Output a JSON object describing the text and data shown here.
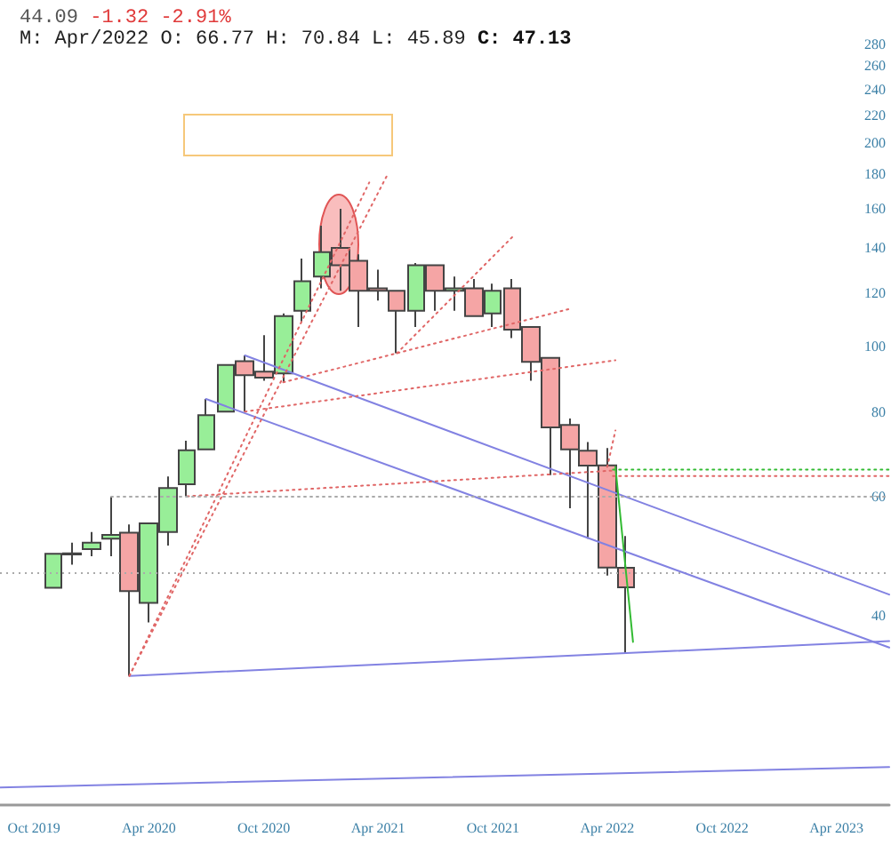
{
  "chart_data": {
    "type": "candlestick",
    "title": "44.09 -1.32 -2.91%",
    "subtitle": "M: Apr/2022 O: 66.77 H: 70.84 L: 45.89 C: 47.13",
    "series": [
      {
        "x": [
          "2019-11",
          "2019-12",
          "2020-01",
          "2020-02",
          "2020-03",
          "2020-04",
          "2020-05",
          "2020-06",
          "2020-07",
          "2020-08",
          "2020-09",
          "2020-10",
          "2020-11",
          "2020-12",
          "2021-01",
          "2021-02",
          "2021-03",
          "2021-04",
          "2021-05",
          "2021-06",
          "2021-07",
          "2021-08",
          "2021-09",
          "2021-10",
          "2021-11",
          "2021-12",
          "2022-01",
          "2022-02",
          "2022-03",
          "2022-04",
          "2022-05"
        ],
        "ohlc": [
          [
            44.0,
            49.4,
            44.0,
            49.4
          ],
          [
            49.3,
            51.3,
            47.6,
            49.5
          ],
          [
            50.2,
            53.2,
            49.0,
            51.3
          ],
          [
            52.0,
            60.0,
            49.0,
            52.7
          ],
          [
            53.1,
            54.6,
            32.6,
            43.5
          ],
          [
            41.8,
            54.8,
            39.1,
            54.8
          ],
          [
            53.2,
            64.3,
            50.8,
            61.8
          ],
          [
            62.6,
            72.6,
            60.1,
            70.3
          ],
          [
            70.5,
            83.7,
            70.5,
            79.2
          ],
          [
            80.2,
            94.0,
            80.2,
            94.0
          ],
          [
            95.2,
            97.1,
            80.2,
            90.8
          ],
          [
            91.9,
            104,
            89.1,
            90.0
          ],
          [
            91.3,
            112,
            88.6,
            111
          ],
          [
            113,
            135,
            109,
            125
          ],
          [
            127,
            151,
            122,
            138
          ],
          [
            140,
            160,
            121,
            132
          ],
          [
            134,
            137,
            107,
            121
          ],
          [
            122,
            130,
            117,
            121
          ],
          [
            121,
            121,
            97.8,
            113
          ],
          [
            113,
            133,
            107,
            132
          ],
          [
            132,
            132,
            113,
            121
          ],
          [
            121,
            127,
            113,
            122
          ],
          [
            122,
            126,
            111,
            111
          ],
          [
            112,
            124,
            107,
            121
          ],
          [
            122,
            126,
            103,
            106
          ],
          [
            107,
            107,
            89.1,
            95.0
          ],
          [
            96.3,
            96.6,
            64.6,
            76.0
          ],
          [
            76.6,
            78.3,
            57.7,
            70.5
          ],
          [
            70.2,
            72.3,
            52.0,
            66.7
          ],
          [
            66.77,
            70.84,
            45.89,
            47.13
          ],
          [
            47.1,
            52.5,
            35.2,
            44.09
          ]
        ],
        "colors": [
          "#98ee98",
          "#98ee98",
          "#98ee98",
          "#98ee98",
          "#f5a5a5",
          "#98ee98",
          "#98ee98",
          "#98ee98",
          "#98ee98",
          "#98ee98",
          "#f5a5a5",
          "#f5a5a5",
          "#98ee98",
          "#98ee98",
          "#98ee98",
          "#f5a5a5",
          "#f5a5a5",
          "#f5a5a5",
          "#f5a5a5",
          "#98ee98",
          "#f5a5a5",
          "#98ee98",
          "#f5a5a5",
          "#98ee98",
          "#f5a5a5",
          "#f5a5a5",
          "#f5a5a5",
          "#f5a5a5",
          "#f5a5a5",
          "#f5a5a5",
          "#f5a5a5"
        ]
      },
      {
        "type": "line",
        "x": [
          "2020-09",
          "2023-06-24"
        ],
        "values": [
          97.1,
          43.0
        ],
        "color": "#8282e2",
        "line_style": "solid"
      },
      {
        "type": "line",
        "x": [
          "2020-07",
          "2023-06-24"
        ],
        "values": [
          83.7,
          35.9
        ],
        "color": "#8282e2",
        "line_style": "solid"
      },
      {
        "type": "line",
        "x": [
          "2020-03",
          "2023-06-24"
        ],
        "values": [
          32.6,
          36.7
        ],
        "color": "#8282e2",
        "line_style": "solid"
      },
      {
        "type": "line",
        "x": [
          "2019-08-08",
          "2023-06-24"
        ],
        "values": [
          22.3,
          23.9
        ],
        "color": "#8282e2",
        "line_style": "solid"
      },
      {
        "type": "line",
        "x": [
          "2020-03",
          "2021-03-18"
        ],
        "values": [
          32.6,
          175
        ],
        "color": "#e06666",
        "line_style": "dotted"
      },
      {
        "type": "line",
        "x": [
          "2020-03",
          "2021-04-15"
        ],
        "values": [
          32.6,
          179
        ],
        "color": "#e06666",
        "line_style": "dotted"
      },
      {
        "type": "line",
        "x": [
          "2020-06",
          "2022-04-10"
        ],
        "values": [
          60.1,
          65.6
        ],
        "color": "#e06666",
        "line_style": "dotted"
      },
      {
        "type": "line",
        "x": [
          "2022-04-10",
          "2023-06-24"
        ],
        "values": [
          64.4,
          64.4
        ],
        "color": "#e06666",
        "line_style": "dotted"
      },
      {
        "type": "line",
        "x": [
          "2020-09",
          "2022-04-14"
        ],
        "values": [
          80.2,
          95.5
        ],
        "color": "#e06666",
        "line_style": "dotted"
      },
      {
        "type": "line",
        "x": [
          "2020-11",
          "2022-02-04"
        ],
        "values": [
          88.6,
          114
        ],
        "color": "#e06666",
        "line_style": "dotted"
      },
      {
        "type": "line",
        "x": [
          "2021-05",
          "2021-11-03"
        ],
        "values": [
          97.8,
          146
        ],
        "color": "#e06666",
        "line_style": "dotted"
      },
      {
        "type": "line",
        "x": [
          "2022-04",
          "2022-04-14"
        ],
        "values": [
          66.4,
          75.2
        ],
        "color": "#e06666",
        "line_style": "dotted"
      },
      {
        "type": "line",
        "x": [
          "2022-04-10",
          "2023-06-24"
        ],
        "values": [
          65.8,
          65.8
        ],
        "color": "#33bb33",
        "line_style": "dotted"
      },
      {
        "type": "line",
        "x": [
          "2022-04-14",
          "2022-05-12"
        ],
        "values": [
          66.4,
          36.6
        ],
        "color": "#33bb33",
        "line_style": "solid"
      },
      {
        "type": "line",
        "x": [
          "2020-02",
          "2023-06-24"
        ],
        "values": [
          60.0,
          60.0
        ],
        "color": "#aaaaaa",
        "line_style": "dotted"
      }
    ],
    "xlim": [
      "2019-08-08",
      "2023-06-24"
    ],
    "xticks": [
      {
        "value": "2019-10",
        "label": "Oct 2019"
      },
      {
        "value": "2020-04",
        "label": "Apr 2020"
      },
      {
        "value": "2020-10",
        "label": "Oct 2020"
      },
      {
        "value": "2021-04",
        "label": "Apr 2021"
      },
      {
        "value": "2021-10",
        "label": "Oct 2021"
      },
      {
        "value": "2022-04",
        "label": "Apr 2022"
      },
      {
        "value": "2022-10",
        "label": "Oct 2022"
      },
      {
        "value": "2023-04",
        "label": "Apr 2023"
      }
    ],
    "ylim": [
      21,
      280
    ],
    "yticks": [
      40,
      60,
      80,
      100,
      120,
      140,
      160,
      180,
      200,
      220,
      240,
      260,
      280
    ],
    "log": true,
    "grid": false,
    "marker": "none",
    "ref_lines": [
      {
        "axis": "y",
        "value": 46.3,
        "color": "#aaaaaa",
        "line_style": "dotted"
      }
    ]
  }
}
